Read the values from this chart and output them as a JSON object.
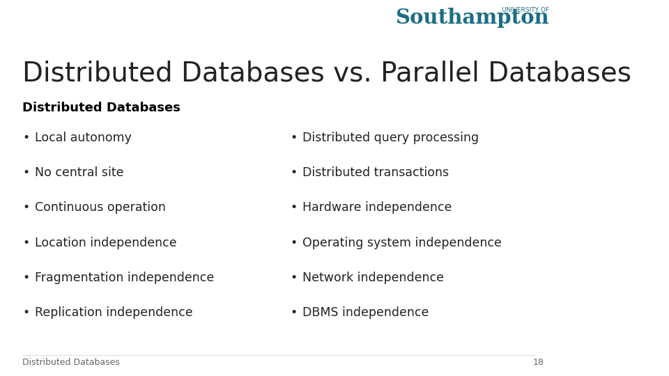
{
  "title": "Distributed Databases vs. Parallel Databases",
  "subtitle": "Distributed Databases",
  "title_color": "#222222",
  "subtitle_color": "#000000",
  "bullet_color": "#222222",
  "background_color": "#ffffff",
  "title_fontsize": 28,
  "subtitle_fontsize": 13,
  "bullet_fontsize": 12.5,
  "footer_text": "Distributed Databases",
  "footer_page": "18",
  "footer_fontsize": 9,
  "soton_color": "#1b6d85",
  "left_bullets": [
    "Local autonomy",
    "No central site",
    "Continuous operation",
    "Location independence",
    "Fragmentation independence",
    "Replication independence"
  ],
  "right_bullets": [
    "Distributed query processing",
    "Distributed transactions",
    "Hardware independence",
    "Operating system independence",
    "Network independence",
    "DBMS independence"
  ]
}
